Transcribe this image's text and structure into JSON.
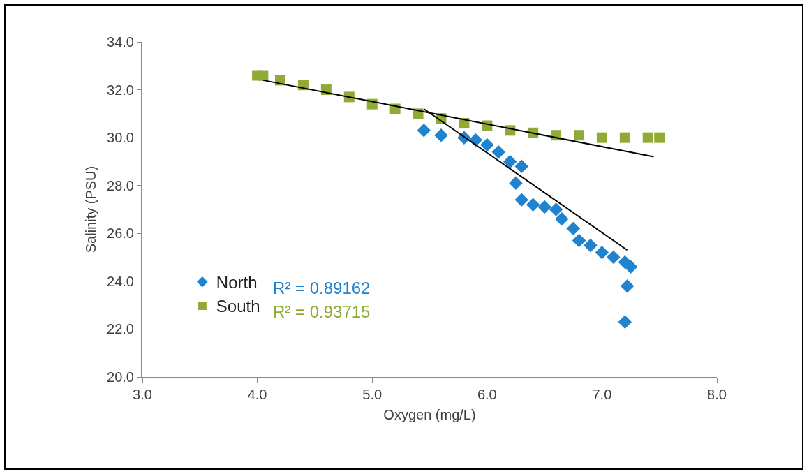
{
  "chart_data": {
    "type": "scatter",
    "xlabel": "Oxygen (mg/L)",
    "ylabel": "Salinity (PSU)",
    "xlim": [
      3,
      8
    ],
    "xticks": [
      {
        "value": 3,
        "label": "3.0"
      },
      {
        "value": 4,
        "label": "4.0"
      },
      {
        "value": 5,
        "label": "5.0"
      },
      {
        "value": 6,
        "label": "6.0"
      },
      {
        "value": 7,
        "label": "7.0"
      },
      {
        "value": 8,
        "label": "8.0"
      }
    ],
    "ylim": [
      20,
      34
    ],
    "yticks": [
      {
        "value": 20,
        "label": "20.0"
      },
      {
        "value": 22,
        "label": "22.0"
      },
      {
        "value": 24,
        "label": "24.0"
      },
      {
        "value": 26,
        "label": "26.0"
      },
      {
        "value": 28,
        "label": "28.0"
      },
      {
        "value": 30,
        "label": "30.0"
      },
      {
        "value": 32,
        "label": "32.0"
      },
      {
        "value": 34,
        "label": "34.0"
      }
    ],
    "grid": false,
    "legend": "bottom left",
    "series": [
      {
        "name": "North",
        "color": "#1f83d0",
        "marker": "diamond",
        "x": [
          5.45,
          5.6,
          5.8,
          5.9,
          6.0,
          6.1,
          6.2,
          6.3,
          6.25,
          6.3,
          6.4,
          6.5,
          6.6,
          6.65,
          6.75,
          6.8,
          6.9,
          7.0,
          7.1,
          7.2,
          7.25,
          7.22,
          7.2
        ],
        "values": [
          30.3,
          30.1,
          30.0,
          29.9,
          29.7,
          29.4,
          29.0,
          28.8,
          28.1,
          27.4,
          27.2,
          27.1,
          27.0,
          26.6,
          26.2,
          25.7,
          25.5,
          25.2,
          25.0,
          24.8,
          24.6,
          23.8,
          22.3
        ]
      },
      {
        "name": "South",
        "color": "#8faa35",
        "marker": "square",
        "x": [
          4.0,
          4.05,
          4.2,
          4.4,
          4.6,
          4.8,
          5.0,
          5.2,
          5.4,
          5.6,
          5.8,
          6.0,
          6.2,
          6.4,
          6.6,
          6.8,
          7.0,
          7.2,
          7.4,
          7.5
        ],
        "values": [
          32.6,
          32.6,
          32.4,
          32.2,
          32.0,
          31.7,
          31.4,
          31.2,
          31.0,
          30.8,
          30.6,
          30.5,
          30.3,
          30.2,
          30.1,
          30.1,
          30.0,
          30.0,
          30.0,
          30.0
        ]
      },
      {
        "type": "line",
        "color": "#000000",
        "marker": "none",
        "x": [
          5.45,
          7.22
        ],
        "values": [
          31.2,
          25.3
        ]
      },
      {
        "type": "line",
        "color": "#000000",
        "marker": "none",
        "x": [
          4.05,
          7.45
        ],
        "values": [
          32.4,
          29.2
        ]
      }
    ],
    "annotations": [
      "R² = 0.89162",
      "R² = 0.93715"
    ]
  }
}
